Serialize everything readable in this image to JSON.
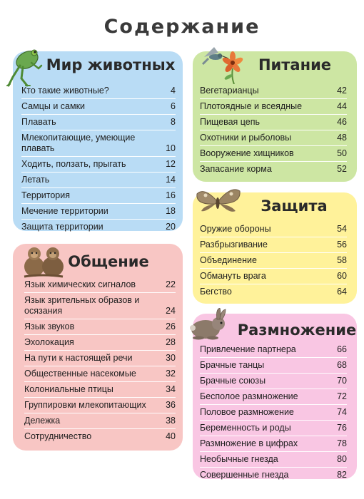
{
  "page": {
    "title": "Содержание"
  },
  "sections": {
    "animals": {
      "title": "Мир животных",
      "icon": "frog-icon",
      "color": "#b9dcf5",
      "items": [
        {
          "label": "Кто такие животные?",
          "page": "4"
        },
        {
          "label": "Самцы и самки",
          "page": "6"
        },
        {
          "label": "Плавать",
          "page": "8"
        },
        {
          "label": "Млекопитающие, умеющие плавать",
          "page": "10"
        },
        {
          "label": "Ходить, ползать, прыгать",
          "page": "12"
        },
        {
          "label": "Летать",
          "page": "14"
        },
        {
          "label": "Территория",
          "page": "16"
        },
        {
          "label": "Мечение территории",
          "page": "18"
        },
        {
          "label": "Защита территории",
          "page": "20"
        }
      ]
    },
    "food": {
      "title": "Питание",
      "icon": "hummingbird-flower-icon",
      "color": "#cde6a3",
      "items": [
        {
          "label": "Вегетарианцы",
          "page": "42"
        },
        {
          "label": "Плотоядные и всеядные",
          "page": "44"
        },
        {
          "label": "Пищевая цепь",
          "page": "46"
        },
        {
          "label": "Охотники и рыболовы",
          "page": "48"
        },
        {
          "label": "Вооружение хищников",
          "page": "50"
        },
        {
          "label": "Запасание корма",
          "page": "52"
        }
      ]
    },
    "defense": {
      "title": "Защита",
      "icon": "moth-icon",
      "color": "#fff29a",
      "items": [
        {
          "label": "Оружие обороны",
          "page": "54"
        },
        {
          "label": "Разбрызгивание",
          "page": "56"
        },
        {
          "label": "Объединение",
          "page": "58"
        },
        {
          "label": "Обмануть врага",
          "page": "60"
        },
        {
          "label": "Бегство",
          "page": "64"
        }
      ]
    },
    "communication": {
      "title": "Общение",
      "icon": "monkeys-icon",
      "color": "#f8c6c4",
      "items": [
        {
          "label": "Язык химических сигналов",
          "page": "22"
        },
        {
          "label": "Язык зрительных образов и осязания",
          "page": "24"
        },
        {
          "label": "Язык звуков",
          "page": "26"
        },
        {
          "label": "Эхолокация",
          "page": "28"
        },
        {
          "label": "На пути к настоящей речи",
          "page": "30"
        },
        {
          "label": "Общественные насекомые",
          "page": "32"
        },
        {
          "label": "Колониальные птицы",
          "page": "34"
        },
        {
          "label": "Группировки млекопитающих",
          "page": "36"
        },
        {
          "label": "Дележка",
          "page": "38"
        },
        {
          "label": "Сотрудничество",
          "page": "40"
        }
      ]
    },
    "reproduction": {
      "title": "Размножение",
      "icon": "rabbit-icon",
      "color": "#f9c6e3",
      "items": [
        {
          "label": "Привлечение партнера",
          "page": "66"
        },
        {
          "label": "Брачные танцы",
          "page": "68"
        },
        {
          "label": "Брачные союзы",
          "page": "70"
        },
        {
          "label": "Бесполое размножение",
          "page": "72"
        },
        {
          "label": "Половое размножение",
          "page": "74"
        },
        {
          "label": "Беременность и роды",
          "page": "76"
        },
        {
          "label": "Размножение в цифрах",
          "page": "78"
        },
        {
          "label": "Необычные гнезда",
          "page": "80"
        },
        {
          "label": "Совершенные гнезда",
          "page": "82"
        }
      ]
    }
  }
}
